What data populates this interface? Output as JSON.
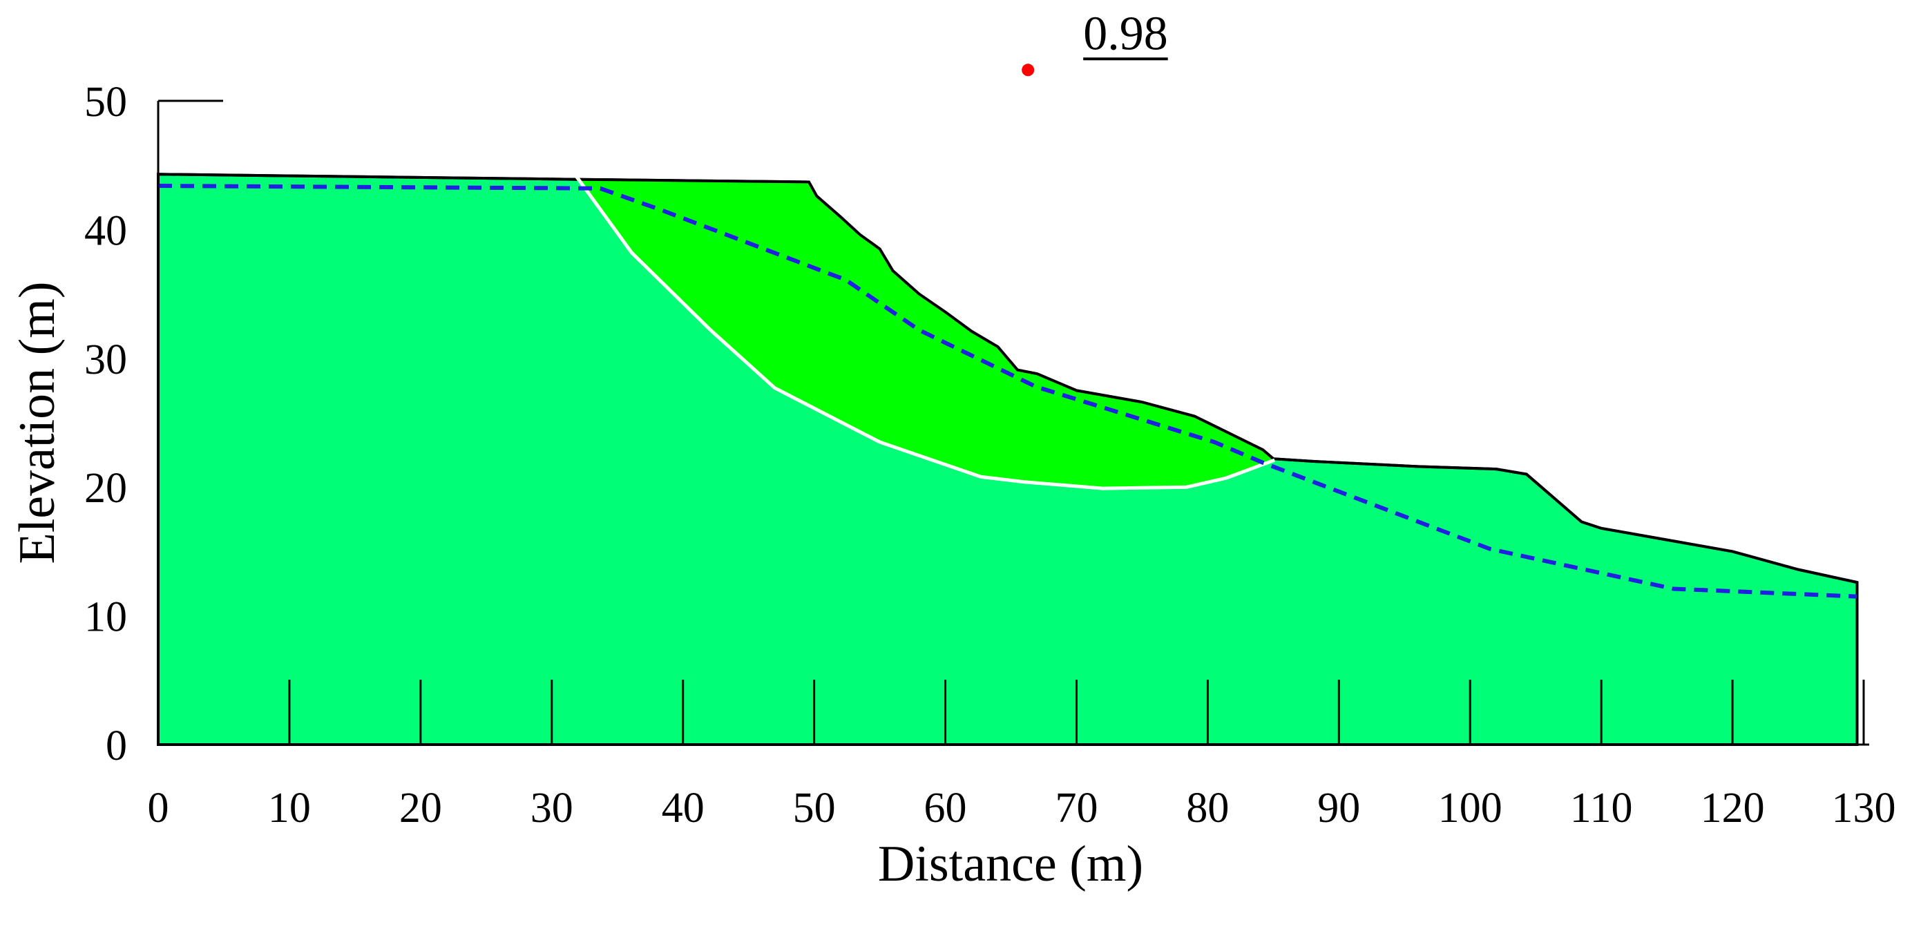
{
  "chart_data": {
    "type": "slope",
    "xlabel": "Distance (m)",
    "ylabel": "Elevation (m)",
    "xlim": [
      0,
      130
    ],
    "ylim": [
      0,
      50
    ],
    "xticks": [
      0,
      10,
      20,
      30,
      40,
      50,
      60,
      70,
      80,
      90,
      100,
      110,
      120,
      130
    ],
    "yticks": [
      0,
      10,
      20,
      30,
      40,
      50
    ],
    "ground": {
      "color": "#00ff77",
      "x": [
        0,
        32,
        49.6,
        50.2,
        52,
        53.5,
        55,
        56,
        58,
        60,
        62,
        64,
        65.5,
        67,
        70,
        75,
        79,
        82,
        84.2,
        85,
        88,
        96,
        102,
        104.3,
        108.5,
        110,
        115,
        120,
        125,
        129.5
      ],
      "y": [
        44.3,
        43.9,
        43.7,
        42.6,
        41,
        39.6,
        38.5,
        36.8,
        35,
        33.6,
        32.1,
        30.9,
        29.1,
        28.8,
        27.5,
        26.6,
        25.5,
        24,
        22.9,
        22.2,
        22,
        21.6,
        21.4,
        21,
        17.3,
        16.8,
        15.9,
        15,
        13.6,
        12.6
      ]
    },
    "slip_surface": {
      "color": "#ffffff",
      "fill": "#00ff00",
      "x": [
        31.9,
        36.1,
        42.1,
        47,
        55,
        62.7,
        66,
        72,
        78.4,
        81.4,
        85.1
      ],
      "y": [
        44.1,
        38.2,
        32.2,
        27.7,
        23.5,
        20.8,
        20.4,
        19.9,
        20,
        20.7,
        22.1
      ]
    },
    "water_table": {
      "color": "#2020e0",
      "x": [
        0,
        33.7,
        38.4,
        52.4,
        58,
        66.9,
        80.5,
        84.2,
        101.5,
        115.5,
        129.5
      ],
      "y": [
        43.4,
        43.2,
        41.5,
        36.1,
        32.2,
        27.8,
        23.5,
        21.9,
        15.2,
        12.1,
        11.5
      ]
    },
    "critical_center": {
      "x": 66.3,
      "y": 52.4,
      "color": "#ff0000"
    },
    "factor_of_safety": "0.98"
  }
}
